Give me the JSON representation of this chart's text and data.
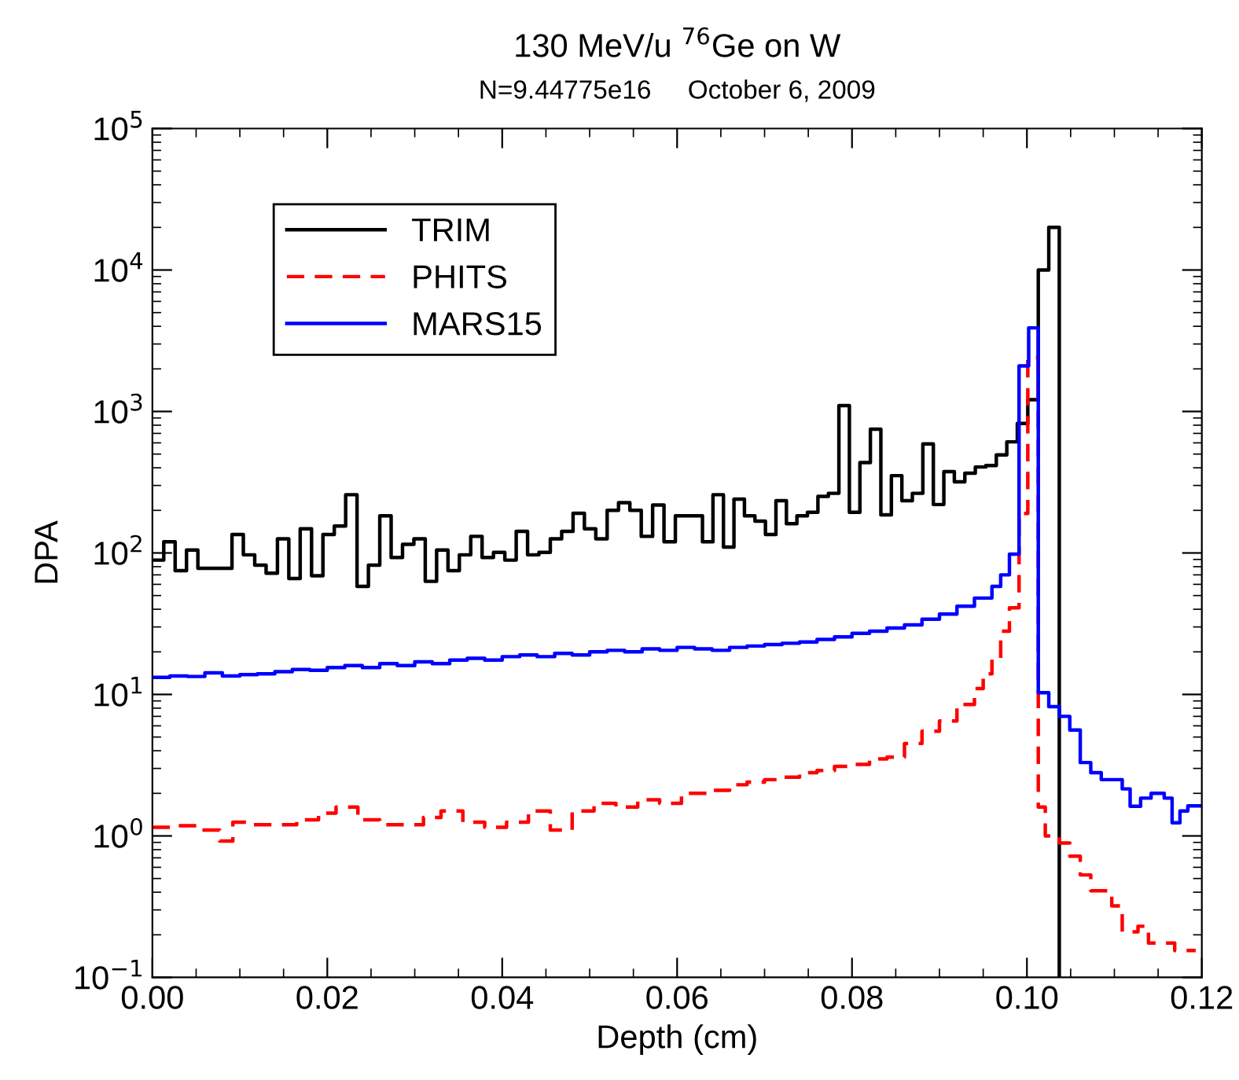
{
  "chart_data": {
    "type": "step",
    "title": "130 MeV/u $^{76}$Ge on W",
    "subtitle": "N=9.44775e16     October 6, 2009",
    "xlabel": "Depth (cm)",
    "ylabel": "DPA",
    "log": "y",
    "grid": false,
    "legend": "top left",
    "xlim": [
      0,
      0.12
    ],
    "xticks": [
      {
        "value": 0,
        "label": "0.00"
      },
      {
        "value": 0.02,
        "label": "0.02"
      },
      {
        "value": 0.04,
        "label": "0.04"
      },
      {
        "value": 0.06,
        "label": "0.06"
      },
      {
        "value": 0.08,
        "label": "0.08"
      },
      {
        "value": 0.1,
        "label": "0.10"
      },
      {
        "value": 0.12,
        "label": "0.12"
      }
    ],
    "ylim": [
      0.1,
      100000
    ],
    "yticks": [
      {
        "value": 0.1,
        "label": "10$^{−1}$"
      },
      {
        "value": 1,
        "label": "10$^{0}$"
      },
      {
        "value": 10,
        "label": "10$^{1}$"
      },
      {
        "value": 100,
        "label": "10$^{2}$"
      },
      {
        "value": 1000,
        "label": "10$^{3}$"
      },
      {
        "value": 10000,
        "label": "10$^{4}$"
      },
      {
        "value": 100000,
        "label": "10$^{5}$"
      }
    ],
    "series": [
      {
        "name": "TRIM",
        "color": "#000000",
        "line_style": "solid",
        "x": [
          0,
          0.0013,
          0.0026,
          0.0039,
          0.0052,
          0.0065,
          0.0078,
          0.0091,
          0.0104,
          0.0117,
          0.013,
          0.0143,
          0.0156,
          0.0169,
          0.0182,
          0.0195,
          0.0208,
          0.0221,
          0.0234,
          0.0247,
          0.026,
          0.0273,
          0.0286,
          0.0299,
          0.0312,
          0.0325,
          0.0338,
          0.0351,
          0.0364,
          0.0377,
          0.039,
          0.0403,
          0.0416,
          0.0429,
          0.0442,
          0.0455,
          0.0468,
          0.0481,
          0.0494,
          0.0507,
          0.052,
          0.0533,
          0.0546,
          0.0559,
          0.0572,
          0.0585,
          0.0598,
          0.0617,
          0.0629,
          0.0641,
          0.0653,
          0.0665,
          0.0677,
          0.0689,
          0.0701,
          0.0713,
          0.0725,
          0.0737,
          0.0749,
          0.0761,
          0.0773,
          0.0785,
          0.0797,
          0.0809,
          0.0821,
          0.0833,
          0.0845,
          0.0857,
          0.0869,
          0.0881,
          0.0893,
          0.0905,
          0.0917,
          0.0929,
          0.0941,
          0.0953,
          0.0965,
          0.0977,
          0.0989,
          0.1001,
          0.1013,
          0.1025,
          0.1037
        ],
        "values": [
          89,
          120,
          75,
          105,
          78,
          78,
          78,
          135,
          97,
          82,
          72,
          126,
          66,
          148,
          69,
          135,
          155,
          258,
          58,
          82,
          183,
          93,
          115,
          126,
          63,
          105,
          75,
          97,
          131,
          93,
          101,
          89,
          142,
          97,
          101,
          126,
          142,
          191,
          148,
          126,
          200,
          227,
          200,
          131,
          218,
          120,
          183,
          183,
          120,
          258,
          110,
          240,
          183,
          168,
          135,
          234,
          161,
          183,
          194,
          251,
          264,
          1100,
          194,
          435,
          750,
          186,
          352,
          234,
          264,
          590,
          220,
          376,
          318,
          366,
          405,
          415,
          493,
          610,
          823,
          1210,
          10000,
          20000,
          0.1
        ]
      },
      {
        "name": "PHITS",
        "color": "#ff0000",
        "line_style": "dashed",
        "x": [
          0,
          0.003,
          0.0055,
          0.0077,
          0.0092,
          0.0115,
          0.014,
          0.0165,
          0.019,
          0.021,
          0.0235,
          0.026,
          0.0285,
          0.031,
          0.033,
          0.0355,
          0.038,
          0.0405,
          0.043,
          0.0455,
          0.048,
          0.0505,
          0.053,
          0.0555,
          0.058,
          0.0605,
          0.064,
          0.066,
          0.068,
          0.07,
          0.072,
          0.074,
          0.076,
          0.078,
          0.08,
          0.082,
          0.084,
          0.086,
          0.088,
          0.09,
          0.092,
          0.094,
          0.095,
          0.096,
          0.097,
          0.098,
          0.0991,
          0.1001,
          0.1013,
          0.1021,
          0.1037,
          0.1049,
          0.1061,
          0.1073,
          0.1097,
          0.1109,
          0.1127,
          0.1139,
          0.1169,
          0.1193
        ],
        "values": [
          1.15,
          1.18,
          1.1,
          0.92,
          1.25,
          1.2,
          1.2,
          1.3,
          1.45,
          1.6,
          1.3,
          1.2,
          1.2,
          1.35,
          1.5,
          1.25,
          1.15,
          1.25,
          1.5,
          1.1,
          1.5,
          1.7,
          1.6,
          1.8,
          1.7,
          2.0,
          2.1,
          2.3,
          2.4,
          2.5,
          2.6,
          2.8,
          2.9,
          3.1,
          3.2,
          3.5,
          3.6,
          4.5,
          5.5,
          6.5,
          8.5,
          11,
          14,
          18,
          28,
          41,
          190,
          2400,
          1.6,
          1.0,
          0.89,
          0.72,
          0.53,
          0.41,
          0.32,
          0.21,
          0.23,
          0.175,
          0.155,
          0.155
        ]
      },
      {
        "name": "MARS15",
        "color": "#0000ff",
        "line_style": "solid",
        "x": [
          0,
          0.002,
          0.004,
          0.006,
          0.008,
          0.01,
          0.012,
          0.014,
          0.016,
          0.018,
          0.02,
          0.022,
          0.024,
          0.026,
          0.028,
          0.03,
          0.032,
          0.034,
          0.036,
          0.038,
          0.04,
          0.042,
          0.044,
          0.046,
          0.048,
          0.05,
          0.052,
          0.054,
          0.056,
          0.058,
          0.06,
          0.062,
          0.064,
          0.066,
          0.068,
          0.07,
          0.072,
          0.074,
          0.076,
          0.078,
          0.08,
          0.082,
          0.084,
          0.086,
          0.088,
          0.09,
          0.092,
          0.094,
          0.096,
          0.097,
          0.098,
          0.0991,
          0.1002,
          0.1013,
          0.1025,
          0.1037,
          0.1049,
          0.1061,
          0.1073,
          0.1085,
          0.1109,
          0.1118,
          0.113,
          0.1142,
          0.1157,
          0.1166,
          0.1175,
          0.1184,
          0.12
        ],
        "values": [
          13.2,
          13.5,
          13.4,
          14.2,
          13.5,
          13.8,
          14,
          14.5,
          15,
          14.8,
          15.5,
          16,
          15.5,
          16.5,
          16,
          17,
          16.5,
          17.5,
          18,
          17.5,
          18.5,
          19,
          18.5,
          19.5,
          19,
          20,
          20.5,
          20,
          21,
          20.5,
          21.5,
          21,
          20.5,
          21.5,
          22,
          22.5,
          23,
          23.5,
          24.5,
          25.5,
          27,
          28,
          29.5,
          31,
          34,
          37,
          42,
          48,
          58,
          70,
          98,
          2100,
          3900,
          10.3,
          8.2,
          7.0,
          5.6,
          3.3,
          2.8,
          2.5,
          2.15,
          1.62,
          1.85,
          2.0,
          1.85,
          1.24,
          1.5,
          1.63,
          1.63
        ]
      }
    ]
  }
}
